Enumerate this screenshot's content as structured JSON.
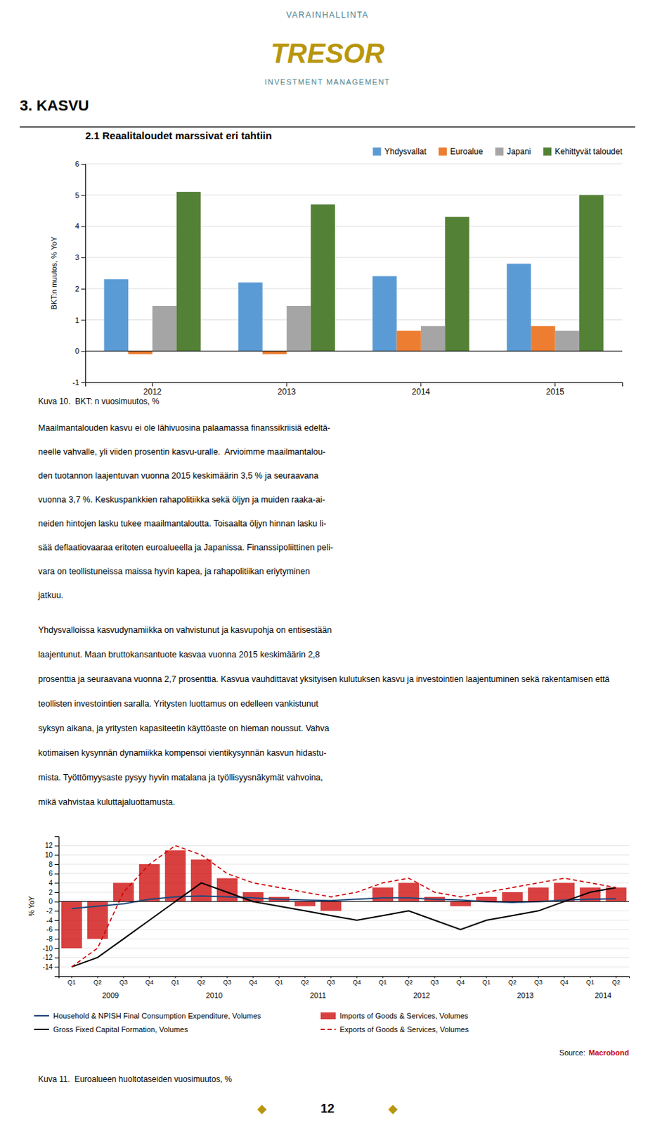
{
  "page": {
    "logo": [
      {
        "text": "VARAINHALLINTA",
        "color": "#4A7F8F"
      },
      {
        "text": "TRESOR",
        "color": "#B8960C"
      },
      {
        "text": "INVESTMENT MANAGEMENT",
        "color": "#4A7F8F"
      }
    ],
    "section_title": "3. KASVU",
    "paragraphs": [
      [
        "Maailmantalouden kasvu ei ole lähivuosina palaamassa finanssikriisiä edeltä-",
        "neelle vahvalle, yli viiden prosentin kasvu-uralle.  Arvioimme maailmantalou-",
        "den tuotannon laajentuvan vuonna 2015 keskimäärin 3,5 % ja seuraavana",
        "vuonna 3,7 %. Keskuspankkien rahapolitiikka sekä öljyn ja muiden raaka-ai-",
        "neiden hintojen lasku tukee maailmantaloutta. Toisaalta öljyn hinnan lasku li-",
        "sää deflaatiovaaraa eritoten euroalueella ja Japanissa. Finanssipoliittinen peli-",
        "vara on teollistuneissa maissa hyvin kapea, ja rahapolitiikan eriytyminen",
        "jatkuu."
      ],
      [
        "Yhdysvalloissa kasvudynamiikka on vahvistunut ja kasvupohja on entisestään",
        "laajentunut. Maan bruttokansantuote kasvaa vuonna 2015 keskimäärin 2,8",
        "prosenttia ja seuraavana vuonna 2,7 prosenttia. Kasvua vauhdittavat yksityisen kulutuksen kasvu ja investointien laajentuminen sekä rakentamisen että",
        "teollisten investointien saralla. Yritysten luottamus on edelleen vankistunut",
        "syksyn aikana, ja yritysten kapasiteetin käyttöaste on hieman noussut. Vahva",
        "kotimaisen kysynnän dynamiikka kompensoi vientikysynnän kasvun hidastu-",
        "mista. Työttömyysaste pysyy hyvin matalana ja työllisyysnäkymät vahvoina,",
        "mikä vahvistaa kuluttajaluottamusta."
      ]
    ],
    "page_number": {
      "text": "12",
      "ornament": "◆",
      "color": "#B8960C"
    }
  },
  "chart_data": [
    {
      "type": "bar",
      "title": "2.1 Reaalitaloudet marssivat eri tahtiin",
      "ylabel": "BKT:n muutos, % YoY",
      "categories": [
        "2012",
        "2013",
        "2014",
        "2015"
      ],
      "series": [
        {
          "name": "Yhdysvallat",
          "color": "#5B9BD5",
          "values": [
            2.3,
            2.2,
            2.4,
            2.8
          ]
        },
        {
          "name": "Euroalue",
          "color": "#ED7D31",
          "values": [
            -0.1,
            -0.1,
            0.65,
            0.8
          ]
        },
        {
          "name": "Japani",
          "color": "#A5A5A5",
          "values": [
            1.45,
            1.45,
            0.8,
            0.65
          ]
        },
        {
          "name": "Kehittyvät taloudet",
          "color": "#538135",
          "values": [
            5.1,
            4.7,
            4.3,
            5.0
          ]
        }
      ],
      "ylim": [
        -1,
        6
      ],
      "yticks": [
        -1,
        0,
        1,
        2,
        3,
        4,
        5,
        6
      ],
      "grid": true,
      "legend": "top-right",
      "caption": "Kuva 10.  BKT: n vuosimuutos, %"
    },
    {
      "type": "line",
      "ylabel": "% YoY",
      "categories": [
        "Q1",
        "Q2",
        "Q3",
        "Q4",
        "Q1",
        "Q2",
        "Q3",
        "Q4",
        "Q1",
        "Q2",
        "Q3",
        "Q4",
        "Q1",
        "Q2",
        "Q3",
        "Q4",
        "Q1",
        "Q2",
        "Q3",
        "Q4",
        "Q1",
        "Q2"
      ],
      "groups": [
        "2009",
        "2010",
        "2011",
        "2012",
        "2013",
        "2014"
      ],
      "group_sizes": [
        4,
        4,
        4,
        4,
        4,
        2
      ],
      "series": [
        {
          "name": "Household & NPISH Final Consumption Expenditure, Volumes",
          "type": "line",
          "line_style": "solid",
          "color": "#1F497D",
          "values": [
            -1.5,
            -1.0,
            -0.5,
            0.5,
            1.0,
            1.2,
            1.0,
            0.8,
            0.5,
            0.3,
            0.2,
            0.5,
            0.8,
            0.8,
            0.5,
            0.3,
            0.0,
            -0.2,
            0.0,
            0.3,
            0.5,
            0.6
          ]
        },
        {
          "name": "Imports of Goods & Services, Volumes",
          "type": "bar",
          "color": "#CC0000",
          "values": [
            -10,
            -8,
            4,
            8,
            11,
            9,
            5,
            2,
            1,
            -1,
            -2,
            0,
            3,
            4,
            1,
            -1,
            1,
            2,
            3,
            4,
            3,
            3
          ]
        },
        {
          "name": "Gross Fixed Capital Formation, Volumes",
          "type": "line",
          "line_style": "solid",
          "color": "#000000",
          "values": [
            -14,
            -12,
            -8,
            -4,
            0,
            4,
            2,
            0,
            -1,
            -2,
            -3,
            -4,
            -3,
            -2,
            -4,
            -6,
            -4,
            -3,
            -2,
            0,
            2,
            3
          ]
        },
        {
          "name": "Exports of Goods & Services, Volumes",
          "type": "line",
          "line_style": "dashed",
          "color": "#CC0000",
          "values": [
            -14,
            -10,
            2,
            8,
            12,
            10,
            6,
            4,
            3,
            2,
            1,
            2,
            4,
            5,
            2,
            1,
            2,
            3,
            4,
            5,
            4,
            3
          ]
        }
      ],
      "ylim": [
        -16,
        14
      ],
      "yticks": [
        -14,
        -12,
        -10,
        -8,
        -6,
        -4,
        -2,
        0,
        2,
        4,
        6,
        8,
        10,
        12
      ],
      "grid": true,
      "legend": "bottom",
      "source": {
        "text": "Source:",
        "brand": "Macrobond",
        "color": "#CC0000"
      },
      "caption": "Kuva 11.  Euroalueen huoltotaseiden vuosimuutos, %"
    }
  ]
}
